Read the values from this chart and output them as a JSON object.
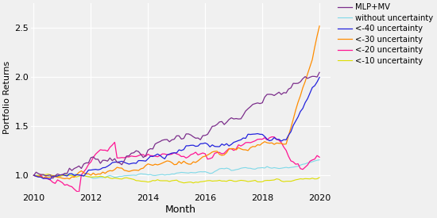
{
  "title": "",
  "xlabel": "Month",
  "ylabel": "Portfolio Returns",
  "xlim": [
    2009.9,
    2020.4
  ],
  "ylim": [
    0.83,
    2.75
  ],
  "yticks": [
    1.0,
    1.5,
    2.0,
    2.5
  ],
  "xticks": [
    2010,
    2012,
    2014,
    2016,
    2018,
    2020
  ],
  "series_order": [
    "MLP+MV",
    "without uncertainty",
    "<-40 uncertainty",
    "<-30 uncertainty",
    "<-20 uncertainty",
    "<-10 uncertainty"
  ],
  "series": {
    "MLP+MV": {
      "color": "#7B2D8B",
      "lw": 0.9
    },
    "without uncertainty": {
      "color": "#7FD9E8",
      "lw": 0.8
    },
    "<-40 uncertainty": {
      "color": "#2222DD",
      "lw": 0.9
    },
    "<-30 uncertainty": {
      "color": "#FF8C00",
      "lw": 0.9
    },
    "<-20 uncertainty": {
      "color": "#FF1493",
      "lw": 0.9
    },
    "<-10 uncertainty": {
      "color": "#DDDD00",
      "lw": 0.8
    }
  },
  "background_color": "#F0F0F0",
  "grid_color": "#FFFFFF",
  "n_points": 121
}
